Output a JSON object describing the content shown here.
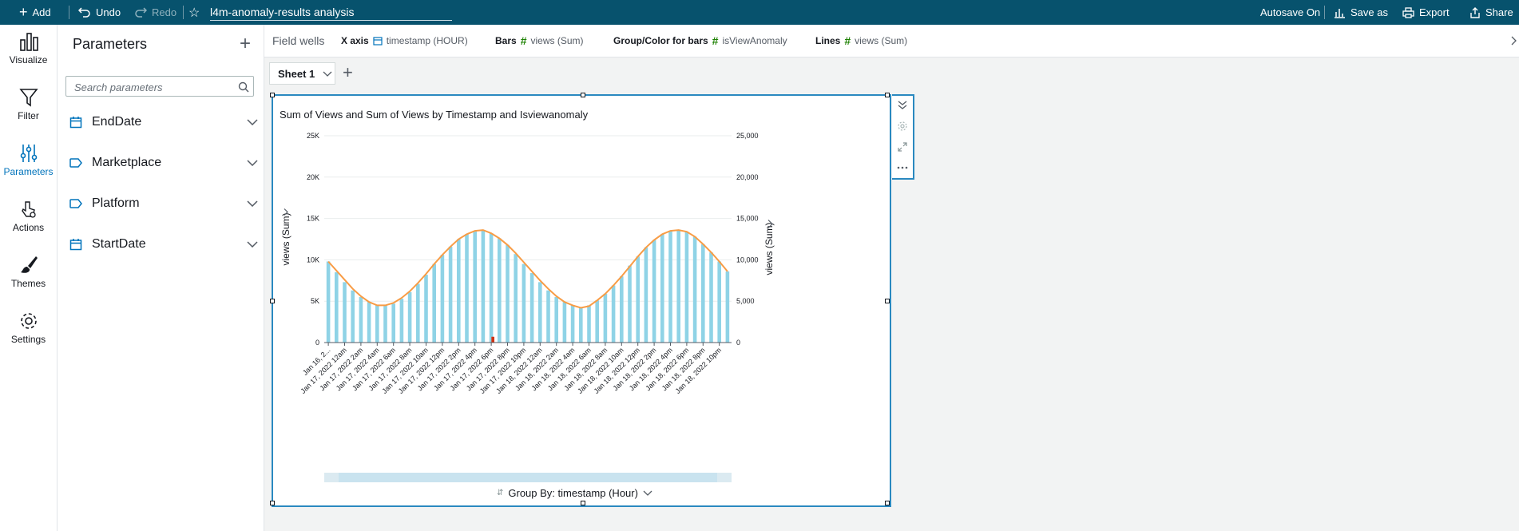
{
  "topbar": {
    "add": "Add",
    "undo": "Undo",
    "redo": "Redo",
    "analysis_title": "l4m-anomaly-results analysis",
    "autosave": "Autosave On",
    "save_as": "Save as",
    "export": "Export",
    "share": "Share"
  },
  "nav": [
    {
      "label": "Visualize",
      "icon": "bar-chart-icon"
    },
    {
      "label": "Filter",
      "icon": "filter-icon"
    },
    {
      "label": "Parameters",
      "icon": "sliders-icon"
    },
    {
      "label": "Actions",
      "icon": "pointer-icon"
    },
    {
      "label": "Themes",
      "icon": "brush-icon"
    },
    {
      "label": "Settings",
      "icon": "gear-icon"
    }
  ],
  "parameters": {
    "title": "Parameters",
    "search_placeholder": "Search parameters",
    "items": [
      {
        "label": "EndDate",
        "icon": "calendar-icon"
      },
      {
        "label": "Marketplace",
        "icon": "tag-icon"
      },
      {
        "label": "Platform",
        "icon": "tag-icon"
      },
      {
        "label": "StartDate",
        "icon": "calendar-icon"
      }
    ]
  },
  "fieldwells": {
    "label": "Field wells",
    "x_axis_label": "X axis",
    "x_axis_value": "timestamp (HOUR)",
    "bars_label": "Bars",
    "bars_value": "views (Sum)",
    "group_label": "Group/Color for bars",
    "group_value": "isViewAnomaly",
    "lines_label": "Lines",
    "lines_value": "views (Sum)"
  },
  "sheet": {
    "tab": "Sheet 1"
  },
  "visual": {
    "group_by": "Group By: timestamp (Hour)"
  },
  "colors": {
    "bar": "#8fd3e6",
    "anomaly": "#d13212",
    "line": "#f89c45",
    "accent": "#0073bb"
  },
  "chart_data": {
    "type": "bar",
    "title": "Sum of Views and Sum of Views by Timestamp and Isviewanomaly",
    "ylabel_left": "views (Sum)",
    "ylabel_right": "views (Sum)",
    "ylim": [
      0,
      25000
    ],
    "y_ticks_left": [
      "0",
      "5K",
      "10K",
      "15K",
      "20K",
      "25K"
    ],
    "y_ticks_right": [
      "0",
      "5,000",
      "10,000",
      "15,000",
      "20,000",
      "25,000"
    ],
    "x_tick_labels": [
      "Jan 16, 2...",
      "Jan 17, 2022 12am",
      "Jan 17, 2022 2am",
      "Jan 17, 2022 4am",
      "Jan 17, 2022 6am",
      "Jan 17, 2022 8am",
      "Jan 17, 2022 10am",
      "Jan 17, 2022 12pm",
      "Jan 17, 2022 2pm",
      "Jan 17, 2022 4pm",
      "Jan 17, 2022 6pm",
      "Jan 17, 2022 8pm",
      "Jan 17, 2022 10pm",
      "Jan 18, 2022 12am",
      "Jan 18, 2022 2am",
      "Jan 18, 2022 4am",
      "Jan 18, 2022 6am",
      "Jan 18, 2022 8am",
      "Jan 18, 2022 10am",
      "Jan 18, 2022 12pm",
      "Jan 18, 2022 2pm",
      "Jan 18, 2022 4pm",
      "Jan 18, 2022 6pm",
      "Jan 18, 2022 8pm",
      "Jan 18, 2022 10pm"
    ],
    "series": [
      {
        "name": "views (Sum)",
        "kind": "bars",
        "values": [
          9800,
          8500,
          7300,
          6300,
          5500,
          4900,
          4500,
          4500,
          4700,
          5300,
          6100,
          7100,
          8200,
          9500,
          10600,
          11600,
          12500,
          13100,
          13500,
          13600,
          13200,
          12600,
          11800,
          10700,
          9500,
          8400,
          7300,
          6300,
          5500,
          4900,
          4500,
          4300,
          4500,
          5100,
          5900,
          6900,
          8000,
          9300,
          10400,
          11500,
          12400,
          13100,
          13500,
          13600,
          13400,
          12800,
          11900,
          10900,
          9800,
          8600
        ]
      },
      {
        "name": "isViewAnomaly",
        "kind": "anomaly-bar",
        "index": 20,
        "value": 700
      },
      {
        "name": "views (Sum)",
        "kind": "line",
        "values": [
          9800,
          8700,
          7600,
          6500,
          5600,
          4900,
          4500,
          4500,
          4800,
          5400,
          6200,
          7200,
          8300,
          9500,
          10600,
          11600,
          12500,
          13100,
          13500,
          13600,
          13200,
          12600,
          11800,
          10800,
          9700,
          8600,
          7500,
          6500,
          5600,
          4900,
          4500,
          4200,
          4400,
          5100,
          5900,
          6900,
          8000,
          9200,
          10400,
          11500,
          12400,
          13100,
          13500,
          13600,
          13400,
          12800,
          11900,
          10900,
          9800,
          8600
        ]
      }
    ]
  }
}
